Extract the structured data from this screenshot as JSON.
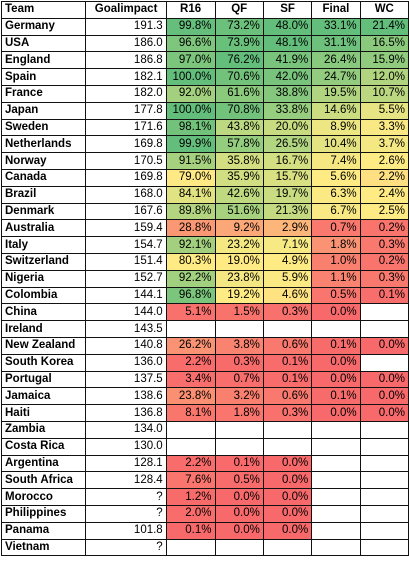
{
  "headers": [
    "Team",
    "Goalimpact",
    "R16",
    "QF",
    "SF",
    "Final",
    "WC"
  ],
  "rows": [
    {
      "team": "Germany",
      "gi": "191.3",
      "cells": [
        "99.8%",
        "73.2%",
        "48.0%",
        "33.1%",
        "21.4%"
      ]
    },
    {
      "team": "USA",
      "gi": "186.0",
      "cells": [
        "96.6%",
        "73.9%",
        "48.1%",
        "31.1%",
        "16.5%"
      ]
    },
    {
      "team": "England",
      "gi": "186.8",
      "cells": [
        "97.0%",
        "76.2%",
        "41.9%",
        "26.4%",
        "15.9%"
      ]
    },
    {
      "team": "Spain",
      "gi": "182.1",
      "cells": [
        "100.0%",
        "70.6%",
        "42.0%",
        "24.7%",
        "12.0%"
      ]
    },
    {
      "team": "France",
      "gi": "182.0",
      "cells": [
        "92.0%",
        "61.6%",
        "38.8%",
        "19.5%",
        "10.7%"
      ]
    },
    {
      "team": "Japan",
      "gi": "177.8",
      "cells": [
        "100.0%",
        "70.8%",
        "33.8%",
        "14.6%",
        "5.5%"
      ]
    },
    {
      "team": "Sweden",
      "gi": "171.6",
      "cells": [
        "98.1%",
        "43.8%",
        "20.0%",
        "8.9%",
        "3.3%"
      ]
    },
    {
      "team": "Netherlands",
      "gi": "169.8",
      "cells": [
        "99.9%",
        "57.8%",
        "26.5%",
        "10.4%",
        "3.7%"
      ]
    },
    {
      "team": "Norway",
      "gi": "170.5",
      "cells": [
        "91.5%",
        "35.8%",
        "16.7%",
        "7.4%",
        "2.6%"
      ]
    },
    {
      "team": "Canada",
      "gi": "169.8",
      "cells": [
        "79.0%",
        "35.9%",
        "15.7%",
        "5.6%",
        "2.2%"
      ]
    },
    {
      "team": "Brazil",
      "gi": "168.0",
      "cells": [
        "84.1%",
        "42.6%",
        "19.7%",
        "6.3%",
        "2.4%"
      ]
    },
    {
      "team": "Denmark",
      "gi": "167.6",
      "cells": [
        "89.8%",
        "51.6%",
        "21.3%",
        "6.7%",
        "2.5%"
      ]
    },
    {
      "team": "Australia",
      "gi": "159.4",
      "cells": [
        "28.8%",
        "9.2%",
        "2.9%",
        "0.7%",
        "0.2%"
      ]
    },
    {
      "team": "Italy",
      "gi": "154.7",
      "cells": [
        "92.1%",
        "23.2%",
        "7.1%",
        "1.8%",
        "0.3%"
      ]
    },
    {
      "team": "Switzerland",
      "gi": "151.4",
      "cells": [
        "80.3%",
        "19.0%",
        "4.9%",
        "1.0%",
        "0.2%"
      ]
    },
    {
      "team": "Nigeria",
      "gi": "152.7",
      "cells": [
        "92.2%",
        "23.8%",
        "5.9%",
        "1.1%",
        "0.3%"
      ]
    },
    {
      "team": "Colombia",
      "gi": "144.1",
      "cells": [
        "96.8%",
        "19.2%",
        "4.6%",
        "0.5%",
        "0.1%"
      ]
    },
    {
      "team": "China",
      "gi": "144.0",
      "cells": [
        "5.1%",
        "1.5%",
        "0.3%",
        "0.0%",
        ""
      ]
    },
    {
      "team": "Ireland",
      "gi": "143.5",
      "cells": [
        "",
        "",
        "",
        "",
        ""
      ]
    },
    {
      "team": "New Zealand",
      "gi": "140.8",
      "cells": [
        "26.2%",
        "3.8%",
        "0.6%",
        "0.1%",
        "0.0%"
      ]
    },
    {
      "team": "South Korea",
      "gi": "136.0",
      "cells": [
        "2.2%",
        "0.3%",
        "0.1%",
        "0.0%",
        ""
      ]
    },
    {
      "team": "Portugal",
      "gi": "137.5",
      "cells": [
        "3.4%",
        "0.7%",
        "0.1%",
        "0.0%",
        "0.0%"
      ]
    },
    {
      "team": "Jamaica",
      "gi": "138.6",
      "cells": [
        "23.8%",
        "3.2%",
        "0.6%",
        "0.1%",
        "0.0%"
      ]
    },
    {
      "team": "Haiti",
      "gi": "136.8",
      "cells": [
        "8.1%",
        "1.8%",
        "0.3%",
        "0.0%",
        "0.0%"
      ]
    },
    {
      "team": "Zambia",
      "gi": "134.0",
      "cells": [
        "",
        "",
        "",
        "",
        ""
      ]
    },
    {
      "team": "Costa Rica",
      "gi": "130.0",
      "cells": [
        "",
        "",
        "",
        "",
        ""
      ]
    },
    {
      "team": "Argentina",
      "gi": "128.1",
      "cells": [
        "2.2%",
        "0.1%",
        "0.0%",
        "",
        ""
      ]
    },
    {
      "team": "South Africa",
      "gi": "128.4",
      "cells": [
        "7.6%",
        "0.5%",
        "0.0%",
        "",
        ""
      ]
    },
    {
      "team": "Morocco",
      "gi": "?",
      "cells": [
        "1.2%",
        "0.0%",
        "0.0%",
        "",
        ""
      ]
    },
    {
      "team": "Philippines",
      "gi": "?",
      "cells": [
        "2.0%",
        "0.0%",
        "0.0%",
        "",
        ""
      ]
    },
    {
      "team": "Panama",
      "gi": "101.8",
      "cells": [
        "0.1%",
        "0.0%",
        "0.0%",
        "",
        ""
      ]
    },
    {
      "team": "Vietnam",
      "gi": "?",
      "cells": [
        "",
        "",
        "",
        "",
        ""
      ]
    }
  ],
  "colors": {
    "green": "#63be7b",
    "yellow": "#ffeb84",
    "red": "#f8696b",
    "border": "#111111"
  }
}
